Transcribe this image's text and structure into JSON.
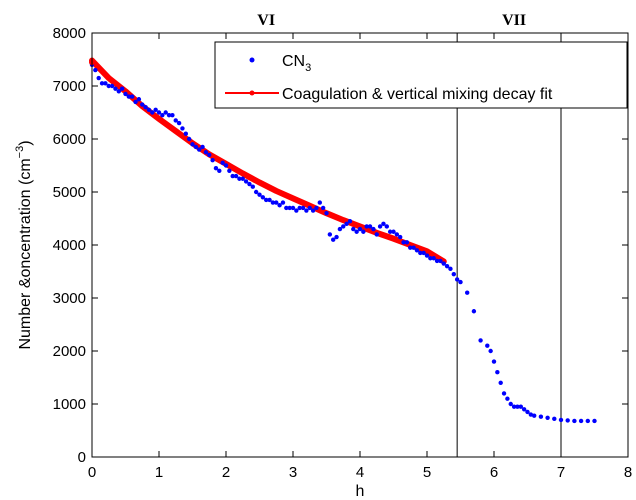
{
  "chart_data": {
    "type": "scatter",
    "xlabel": "h",
    "ylabel": "Number &oncentration (cm",
    "ylabel_sup": "−3",
    "ylabel_close": ")",
    "xlim": [
      0,
      8
    ],
    "ylim": [
      0,
      8000
    ],
    "x_ticks": [
      0,
      1,
      2,
      3,
      4,
      5,
      6,
      7,
      8
    ],
    "y_ticks": [
      0,
      1000,
      2000,
      3000,
      4000,
      5000,
      6000,
      7000,
      8000
    ],
    "grid": false,
    "legend_position": "top-right",
    "vertical_lines": [
      5.45,
      7.0
    ],
    "region_labels": [
      {
        "text": "VI",
        "x": 2.6
      },
      {
        "text": "VII",
        "x": 6.3
      }
    ],
    "series": [
      {
        "name": "CN",
        "name_sub": "3",
        "kind": "scatter",
        "color": "#0000ff",
        "x": [
          0.0,
          0.05,
          0.1,
          0.15,
          0.2,
          0.25,
          0.3,
          0.35,
          0.4,
          0.45,
          0.5,
          0.55,
          0.6,
          0.65,
          0.7,
          0.75,
          0.8,
          0.85,
          0.9,
          0.95,
          1.0,
          1.05,
          1.1,
          1.15,
          1.2,
          1.25,
          1.3,
          1.35,
          1.4,
          1.45,
          1.5,
          1.55,
          1.6,
          1.65,
          1.7,
          1.75,
          1.8,
          1.85,
          1.9,
          1.95,
          2.0,
          2.05,
          2.1,
          2.15,
          2.2,
          2.25,
          2.3,
          2.35,
          2.4,
          2.45,
          2.5,
          2.55,
          2.6,
          2.65,
          2.7,
          2.75,
          2.8,
          2.85,
          2.9,
          2.95,
          3.0,
          3.05,
          3.1,
          3.15,
          3.2,
          3.25,
          3.3,
          3.35,
          3.4,
          3.45,
          3.5,
          3.55,
          3.6,
          3.65,
          3.7,
          3.75,
          3.8,
          3.85,
          3.9,
          3.95,
          4.0,
          4.05,
          4.1,
          4.15,
          4.2,
          4.25,
          4.3,
          4.35,
          4.4,
          4.45,
          4.5,
          4.55,
          4.6,
          4.65,
          4.7,
          4.75,
          4.8,
          4.85,
          4.9,
          4.95,
          5.0,
          5.05,
          5.1,
          5.15,
          5.2,
          5.25,
          5.3,
          5.35,
          5.4,
          5.45,
          5.5,
          5.6,
          5.7,
          5.8,
          5.9,
          5.95,
          6.0,
          6.05,
          6.1,
          6.15,
          6.2,
          6.25,
          6.3,
          6.35,
          6.4,
          6.45,
          6.5,
          6.55,
          6.6,
          6.7,
          6.8,
          6.9,
          7.0,
          7.1,
          7.2,
          7.3,
          7.4,
          7.5
        ],
        "y": [
          7400,
          7300,
          7150,
          7050,
          7050,
          7000,
          7000,
          6950,
          6900,
          6950,
          6850,
          6800,
          6800,
          6700,
          6750,
          6650,
          6600,
          6550,
          6500,
          6550,
          6500,
          6450,
          6500,
          6450,
          6450,
          6350,
          6300,
          6200,
          6100,
          6000,
          5900,
          5850,
          5800,
          5850,
          5750,
          5700,
          5600,
          5450,
          5400,
          5550,
          5500,
          5400,
          5300,
          5300,
          5250,
          5250,
          5200,
          5150,
          5100,
          5000,
          4950,
          4900,
          4850,
          4850,
          4800,
          4800,
          4750,
          4800,
          4700,
          4700,
          4700,
          4650,
          4700,
          4700,
          4650,
          4700,
          4650,
          4700,
          4800,
          4700,
          4600,
          4200,
          4100,
          4150,
          4300,
          4350,
          4400,
          4450,
          4300,
          4250,
          4300,
          4250,
          4350,
          4350,
          4300,
          4200,
          4350,
          4400,
          4350,
          4250,
          4250,
          4200,
          4150,
          4050,
          4050,
          3950,
          3950,
          3900,
          3850,
          3850,
          3800,
          3750,
          3750,
          3700,
          3700,
          3650,
          3600,
          3550,
          3450,
          3350,
          3300,
          3100,
          2750,
          2200,
          2100,
          2000,
          1800,
          1600,
          1400,
          1200,
          1100,
          1000,
          950,
          950,
          950,
          900,
          850,
          800,
          780,
          760,
          740,
          720,
          700,
          690,
          680,
          680,
          680,
          680
        ],
        "highlight_point": {
          "x": 0,
          "y": 7450
        }
      },
      {
        "name": "Coagulation & vertical mixing decay fit",
        "kind": "fit-line",
        "color": "#ff0000",
        "x": [
          0.0,
          0.25,
          0.5,
          0.75,
          1.0,
          1.25,
          1.5,
          1.75,
          2.0,
          2.25,
          2.5,
          2.75,
          3.0,
          3.25,
          3.5,
          3.75,
          4.0,
          4.25,
          4.5,
          4.75,
          5.0,
          5.25
        ],
        "y": [
          7480,
          7150,
          6900,
          6620,
          6380,
          6150,
          5920,
          5710,
          5530,
          5350,
          5180,
          5020,
          4880,
          4740,
          4600,
          4470,
          4350,
          4230,
          4120,
          4000,
          3880,
          3690
        ]
      }
    ]
  }
}
